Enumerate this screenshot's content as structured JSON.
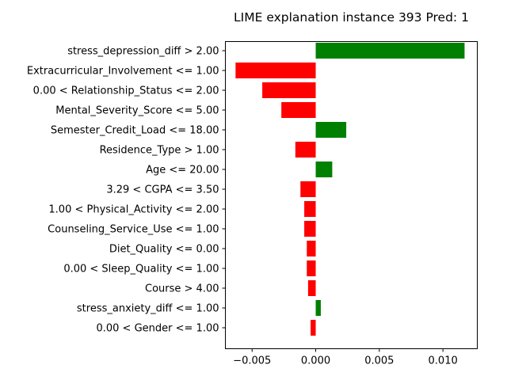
{
  "chart_data": {
    "type": "bar",
    "orientation": "horizontal",
    "title": "LIME explanation instance 393 Pred: 1",
    "xlabel": "",
    "ylabel": "",
    "xlim": [
      -0.0071,
      0.0127
    ],
    "x_ticks": [
      -0.005,
      0.0,
      0.005,
      0.01
    ],
    "x_tick_labels": [
      "−0.005",
      "0.000",
      "0.005",
      "0.010"
    ],
    "grid": false,
    "legend": "none",
    "positive_color": "#008000",
    "negative_color": "#ff0000",
    "categories": [
      "stress_depression_diff > 2.00",
      "Extracurricular_Involvement <= 1.00",
      "0.00 < Relationship_Status <= 2.00",
      "Mental_Severity_Score <= 5.00",
      "Semester_Credit_Load <= 18.00",
      "Residence_Type > 1.00",
      "Age <= 20.00",
      "3.29 < CGPA <= 3.50",
      "1.00 < Physical_Activity <= 2.00",
      "Counseling_Service_Use <= 1.00",
      "Diet_Quality <= 0.00",
      "0.00 < Sleep_Quality <= 1.00",
      "Course > 4.00",
      "stress_anxiety_diff <= 1.00",
      "0.00 < Gender <= 1.00"
    ],
    "values": [
      0.0117,
      -0.0063,
      -0.0042,
      -0.0027,
      0.0024,
      -0.0016,
      0.0013,
      -0.0012,
      -0.0009,
      -0.0009,
      -0.0007,
      -0.0007,
      -0.0006,
      0.0004,
      -0.0004
    ]
  }
}
